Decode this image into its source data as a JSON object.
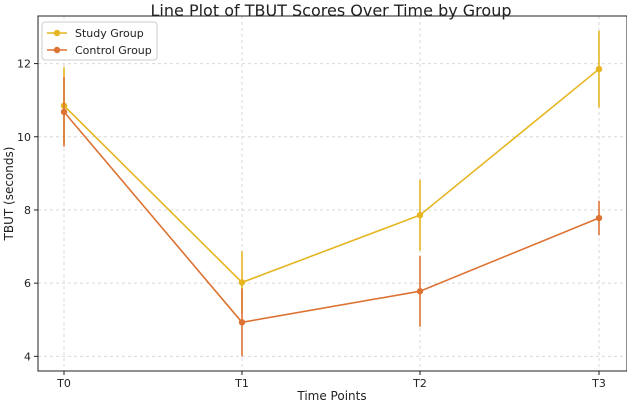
{
  "chart_data": {
    "type": "line",
    "title": "Line Plot of TBUT Scores Over Time by Group",
    "xlabel": "Time Points",
    "ylabel": "TBUT (seconds)",
    "categories": [
      "T0",
      "T1",
      "T2",
      "T3"
    ],
    "ylim": [
      3.6,
      13.3
    ],
    "yticks": [
      4,
      6,
      8,
      10,
      12
    ],
    "grid": true,
    "legend_position": "top-left",
    "series": [
      {
        "name": "Study Group",
        "color": "#E6B520",
        "values": [
          10.85,
          6.02,
          7.86,
          11.85
        ],
        "errors": [
          1.05,
          0.85,
          0.97,
          1.05
        ]
      },
      {
        "name": "Control Group",
        "color": "#DD7333",
        "values": [
          10.68,
          4.93,
          5.78,
          7.78
        ],
        "errors": [
          0.95,
          0.93,
          0.97,
          0.47
        ]
      }
    ]
  }
}
